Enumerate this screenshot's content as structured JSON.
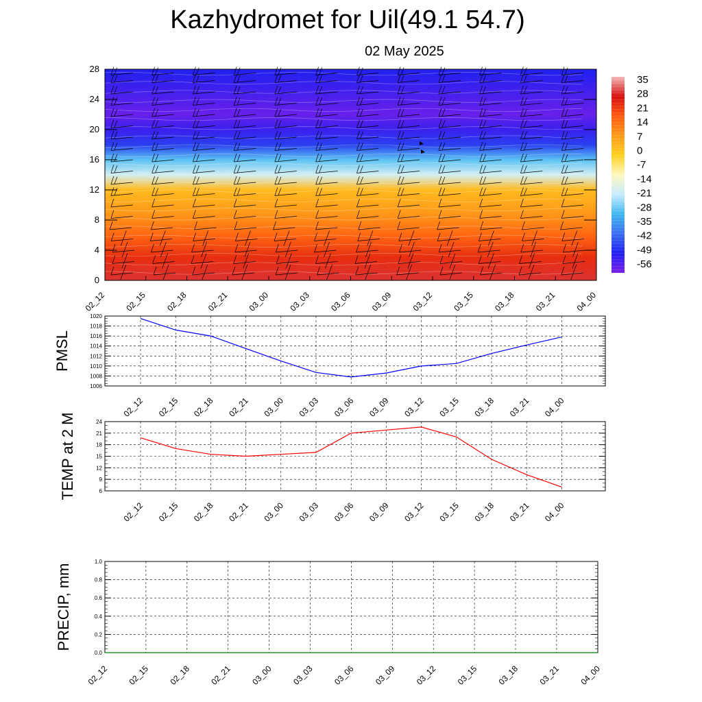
{
  "title": "Kazhydromet for Uil(49.1 54.7)",
  "date": "02 May 2025",
  "chart_data": [
    {
      "type": "heatmap",
      "name": "vertical-profile",
      "x_categories": [
        "02_12",
        "02_15",
        "02_18",
        "02_21",
        "03_00",
        "03_03",
        "03_06",
        "03_09",
        "03_12",
        "03_15",
        "03_18",
        "03_21",
        "04_00"
      ],
      "y_ticks": [
        0,
        4,
        8,
        12,
        16,
        20,
        24,
        28
      ],
      "ylim": [
        0,
        28
      ],
      "colorbar_labels": [
        "35",
        "28",
        "21",
        "14",
        "7",
        "0",
        "-7",
        "-14",
        "-21",
        "-28",
        "-35",
        "-42",
        "-49",
        "-56"
      ],
      "color_stops": [
        "#f2b8b8",
        "#d71010",
        "#ff5a10",
        "#ff9a1a",
        "#ffd020",
        "#fff8c0",
        "#c8ecff",
        "#40b8f0",
        "#3a6ef0",
        "#2020f0",
        "#7a20e8"
      ],
      "profile_levels": [
        0,
        3,
        6,
        9,
        12,
        14,
        16,
        18,
        20,
        22,
        25,
        28
      ],
      "profile_values": [
        30,
        24,
        16,
        8,
        2,
        -20,
        -30,
        -48,
        -55,
        -60,
        -56,
        -52
      ]
    },
    {
      "type": "line",
      "name": "PMSL",
      "ylabel": "PMSL",
      "categories": [
        "02_12",
        "02_15",
        "02_18",
        "02_21",
        "03_00",
        "03_03",
        "03_06",
        "03_09",
        "03_12",
        "03_15",
        "03_18",
        "03_21",
        "04_00"
      ],
      "values": [
        1019.5,
        1017.2,
        1016.0,
        1013.5,
        1011.0,
        1008.7,
        1007.8,
        1008.6,
        1010.0,
        1010.5,
        1012.5,
        1014.2,
        1015.8
      ],
      "yticks": [
        1006,
        1008,
        1010,
        1012,
        1014,
        1016,
        1018,
        1020
      ],
      "ylim": [
        1006,
        1020
      ],
      "color": "#0000ff"
    },
    {
      "type": "line",
      "name": "TEMP at 2 M",
      "ylabel": "TEMP at 2 M",
      "categories": [
        "02_12",
        "02_15",
        "02_18",
        "02_21",
        "03_00",
        "03_03",
        "03_06",
        "03_09",
        "03_12",
        "03_15",
        "03_18",
        "03_21",
        "04_00"
      ],
      "values": [
        19.8,
        17.0,
        15.5,
        15.0,
        15.5,
        16.0,
        21.0,
        21.8,
        22.6,
        20.0,
        14.2,
        10.2,
        7.0
      ],
      "yticks": [
        6,
        9,
        12,
        15,
        18,
        21,
        24
      ],
      "ylim": [
        6,
        24
      ],
      "color": "#ff0000"
    },
    {
      "type": "line",
      "name": "PRECIP, mm",
      "ylabel": "PRECIP, mm",
      "categories": [
        "02_12",
        "02_15",
        "02_18",
        "02_21",
        "03_00",
        "03_03",
        "03_06",
        "03_09",
        "03_12",
        "03_15",
        "03_18",
        "03_21",
        "04_00"
      ],
      "values": [
        0,
        0,
        0,
        0,
        0,
        0,
        0,
        0,
        0,
        0,
        0,
        0,
        0
      ],
      "yticks": [
        "0.0",
        "0.2",
        "0.4",
        "0.6",
        "0.8",
        "1.0"
      ],
      "ylim": [
        0,
        1
      ],
      "color": "#008000"
    }
  ]
}
